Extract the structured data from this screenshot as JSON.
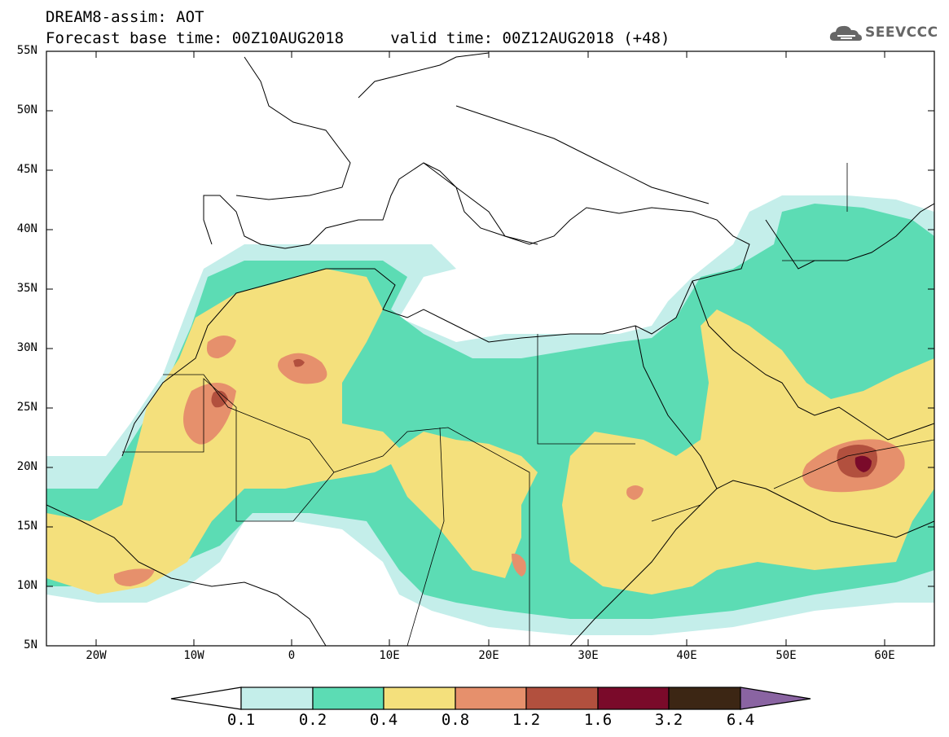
{
  "header": {
    "model": "DREAM8-assim: AOT",
    "base_time": "Forecast base time: 00Z10AUG2018",
    "valid_time": "valid time: 00Z12AUG2018 (+48)"
  },
  "logo": {
    "text": "SEEVCCC",
    "icon": "cloud-icon"
  },
  "map": {
    "lat_labels": [
      "55N",
      "50N",
      "45N",
      "40N",
      "35N",
      "30N",
      "25N",
      "20N",
      "15N",
      "10N",
      "5N"
    ],
    "lon_labels": [
      "20W",
      "10W",
      "0",
      "10E",
      "20E",
      "30E",
      "40E",
      "50E",
      "60E"
    ],
    "extent": {
      "lon": [
        -25,
        65
      ],
      "lat": [
        5,
        55
      ]
    }
  },
  "colorbar": {
    "labels": [
      "0.1",
      "0.2",
      "0.4",
      "0.8",
      "1.2",
      "1.6",
      "3.2",
      "6.4"
    ],
    "colors": [
      "#c4eeea",
      "#5cdcb4",
      "#f4e07c",
      "#e6906c",
      "#b2503e",
      "#7a0a2a",
      "#3c2614",
      "#8a64a2"
    ]
  }
}
